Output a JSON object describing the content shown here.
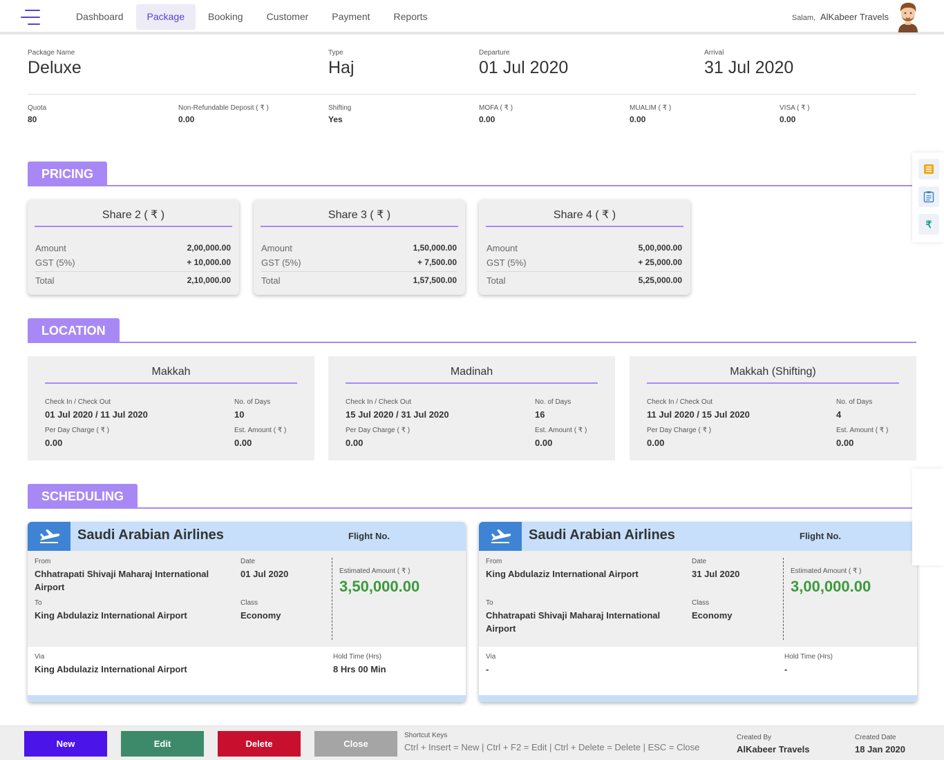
{
  "nav": {
    "items": [
      "Dashboard",
      "Package",
      "Booking",
      "Customer",
      "Payment",
      "Reports"
    ],
    "active": "Package"
  },
  "user": {
    "greeting": "Salam,",
    "name": "AlKabeer Travels"
  },
  "package": {
    "name_label": "Package Name",
    "name": "Deluxe",
    "type_label": "Type",
    "type": "Haj",
    "departure_label": "Departure",
    "departure": "01 Jul 2020",
    "arrival_label": "Arrival",
    "arrival": "31 Jul 2020"
  },
  "details": [
    {
      "label": "Quota",
      "value": "80"
    },
    {
      "label": "Non-Refundable Deposit ( ₹ )",
      "value": "0.00"
    },
    {
      "label": "Shifting",
      "value": "Yes"
    },
    {
      "label": "MOFA ( ₹ )",
      "value": "0.00"
    },
    {
      "label": "MUALIM ( ₹ )",
      "value": "0.00"
    },
    {
      "label": "VISA ( ₹ )",
      "value": "0.00"
    }
  ],
  "sections": {
    "pricing": "PRICING",
    "location": "LOCATION",
    "scheduling": "SCHEDULING"
  },
  "pricing": [
    {
      "title": "Share 2 ( ₹ )",
      "amount_label": "Amount",
      "amount": "2,00,000.00",
      "gst_label": "GST (5%)",
      "gst": "+ 10,000.00",
      "total_label": "Total",
      "total": "2,10,000.00"
    },
    {
      "title": "Share 3 ( ₹ )",
      "amount_label": "Amount",
      "amount": "1,50,000.00",
      "gst_label": "GST (5%)",
      "gst": "+ 7,500.00",
      "total_label": "Total",
      "total": "1,57,500.00"
    },
    {
      "title": "Share 4 ( ₹ )",
      "amount_label": "Amount",
      "amount": "5,00,000.00",
      "gst_label": "GST (5%)",
      "gst": "+ 25,000.00",
      "total_label": "Total",
      "total": "5,25,000.00"
    }
  ],
  "locations": [
    {
      "title": "Makkah",
      "check_label": "Check In / Check Out",
      "check": "01 Jul 2020 / 11 Jul 2020",
      "days_label": "No. of Days",
      "days": "10",
      "charge_label": "Per Day Charge ( ₹ )",
      "charge": "0.00",
      "est_label": "Est. Amount ( ₹ )",
      "est": "0.00"
    },
    {
      "title": "Madinah",
      "check_label": "Check In / Check Out",
      "check": "15 Jul 2020 / 31 Jul 2020",
      "days_label": "No. of Days",
      "days": "16",
      "charge_label": "Per Day Charge ( ₹ )",
      "charge": "0.00",
      "est_label": "Est. Amount ( ₹ )",
      "est": "0.00"
    },
    {
      "title": "Makkah (Shifting)",
      "check_label": "Check In / Check Out",
      "check": "11 Jul 2020 / 15 Jul 2020",
      "days_label": "No. of Days",
      "days": "4",
      "charge_label": "Per Day Charge ( ₹ )",
      "charge": "0.00",
      "est_label": "Est. Amount ( ₹ )",
      "est": "0.00"
    }
  ],
  "flights": [
    {
      "airline": "Saudi Arabian Airlines",
      "flight_no_label": "Flight No.",
      "from_label": "From",
      "from": "Chhatrapati Shivaji Maharaj International Airport",
      "to_label": "To",
      "to": "King Abdulaziz International Airport",
      "date_label": "Date",
      "date": "01 Jul 2020",
      "class_label": "Class",
      "class": "Economy",
      "est_label": "Estimated Amount ( ₹ )",
      "est": "3,50,000.00",
      "via_label": "Via",
      "via": "King Abdulaziz International Airport",
      "hold_label": "Hold Time (Hrs)",
      "hold": "8 Hrs 00 Min"
    },
    {
      "airline": "Saudi Arabian Airlines",
      "flight_no_label": "Flight No.",
      "from_label": "From",
      "from": "King Abdulaziz International Airport",
      "to_label": "To",
      "to": "Chhatrapati Shivaji Maharaj International Airport",
      "date_label": "Date",
      "date": "31 Jul 2020",
      "class_label": "Class",
      "class": "Economy",
      "est_label": "Estimated Amount ( ₹ )",
      "est": "3,00,000.00",
      "via_label": "Via",
      "via": "-",
      "hold_label": "Hold Time (Hrs)",
      "hold": "-"
    }
  ],
  "side_tools": [
    {
      "icon": "list-icon",
      "glyph": "☰",
      "color": "#f0a81c"
    },
    {
      "icon": "clipboard-icon",
      "glyph": "📋",
      "color": "#3f83d4"
    },
    {
      "icon": "rupee-icon",
      "glyph": "₹",
      "color": "#1aa37a"
    }
  ],
  "footer": {
    "buttons": {
      "new": "New",
      "edit": "Edit",
      "delete": "Delete",
      "close": "Close"
    },
    "shortcut_label": "Shortcut Keys",
    "shortcuts": "Ctrl + Insert = New | Ctrl + F2 = Edit | Ctrl + Delete = Delete | ESC = Close",
    "created_by_label": "Created By",
    "created_by": "AlKabeer Travels",
    "created_date_label": "Created Date",
    "created_date": "18 Jan 2020"
  },
  "colors": {
    "accent": "#5b3fd1",
    "section": "#a888f5",
    "amount": "#3b9a3b",
    "new": "#4b14e8",
    "edit": "#3d8a6b",
    "delete": "#c8102e",
    "close": "#a5a5a5"
  }
}
